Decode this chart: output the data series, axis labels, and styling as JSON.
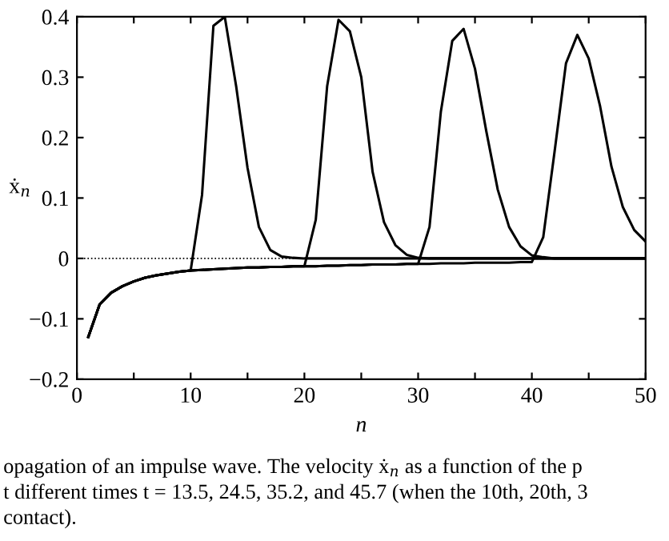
{
  "chart_data": {
    "type": "line",
    "xlabel": "n",
    "ylabel": "ẋ$_{n}$",
    "x": [
      1,
      2,
      3,
      4,
      5,
      6,
      7,
      8,
      9,
      10,
      11,
      12,
      13,
      14,
      15,
      16,
      17,
      18,
      19,
      20,
      21,
      22,
      23,
      24,
      25,
      26,
      27,
      28,
      29,
      30,
      31,
      32,
      33,
      34,
      35,
      36,
      37,
      38,
      39,
      40,
      41,
      42,
      43,
      44,
      45,
      46,
      47,
      48,
      49,
      50
    ],
    "series": [
      {
        "color": "#000000",
        "values": [
          -0.13,
          -0.076,
          -0.057,
          -0.046,
          -0.038,
          -0.032,
          -0.028,
          -0.025,
          -0.022,
          -0.02,
          0.105,
          0.385,
          0.4,
          0.285,
          0.15,
          0.052,
          0.014,
          0.003,
          0.001,
          0,
          0,
          0,
          0,
          0,
          0,
          0,
          0,
          0,
          0,
          0,
          0,
          0,
          0,
          0,
          0,
          0,
          0,
          0,
          0,
          0,
          0,
          0,
          0,
          0,
          0,
          0,
          0,
          0,
          0,
          0
        ]
      },
      {
        "color": "#000000",
        "values": [
          -0.13,
          -0.076,
          -0.057,
          -0.046,
          -0.038,
          -0.032,
          -0.028,
          -0.025,
          -0.022,
          -0.02,
          -0.019,
          -0.018,
          -0.017,
          -0.016,
          -0.015,
          -0.015,
          -0.014,
          -0.014,
          -0.013,
          -0.013,
          0.064,
          0.285,
          0.395,
          0.376,
          0.3,
          0.143,
          0.06,
          0.022,
          0.006,
          0.001,
          0,
          0,
          0,
          0,
          0,
          0,
          0,
          0,
          0,
          0,
          0,
          0,
          0,
          0,
          0,
          0,
          0,
          0,
          0,
          0
        ]
      },
      {
        "color": "#000000",
        "values": [
          -0.13,
          -0.076,
          -0.057,
          -0.046,
          -0.038,
          -0.032,
          -0.028,
          -0.025,
          -0.022,
          -0.02,
          -0.019,
          -0.018,
          -0.017,
          -0.016,
          -0.015,
          -0.015,
          -0.014,
          -0.014,
          -0.013,
          -0.013,
          -0.013,
          -0.012,
          -0.012,
          -0.011,
          -0.011,
          -0.01,
          -0.01,
          -0.01,
          -0.009,
          -0.009,
          0.052,
          0.243,
          0.36,
          0.38,
          0.314,
          0.21,
          0.114,
          0.052,
          0.02,
          0.005,
          0.002,
          0,
          0,
          0,
          0,
          0,
          0,
          0,
          0,
          0
        ]
      },
      {
        "color": "#000000",
        "values": [
          -0.13,
          -0.076,
          -0.057,
          -0.046,
          -0.038,
          -0.032,
          -0.028,
          -0.025,
          -0.022,
          -0.02,
          -0.019,
          -0.018,
          -0.017,
          -0.016,
          -0.015,
          -0.015,
          -0.014,
          -0.014,
          -0.013,
          -0.013,
          -0.013,
          -0.012,
          -0.012,
          -0.011,
          -0.011,
          -0.01,
          -0.01,
          -0.01,
          -0.009,
          -0.009,
          -0.009,
          -0.008,
          -0.008,
          -0.008,
          -0.007,
          -0.007,
          -0.007,
          -0.007,
          -0.006,
          -0.006,
          0.035,
          0.177,
          0.323,
          0.37,
          0.331,
          0.252,
          0.152,
          0.085,
          0.047,
          0.028
        ]
      }
    ],
    "xlim": [
      0,
      50
    ],
    "ylim": [
      -0.2,
      0.4
    ],
    "xticks": [
      0,
      {
        "value": 5,
        "label": null
      },
      10,
      {
        "value": 15,
        "label": null
      },
      20,
      {
        "value": 25,
        "label": null
      },
      30,
      {
        "value": 35,
        "label": null
      },
      40,
      {
        "value": 45,
        "label": null
      },
      50
    ],
    "yticks": [
      {
        "value": -0.2,
        "label": "−0.2"
      },
      {
        "value": -0.1,
        "label": "−0.1"
      },
      0,
      0.1,
      0.2,
      0.3,
      0.4
    ],
    "ref_lines": [
      {
        "axis": "y",
        "value": 0,
        "label": null,
        "color": "#000000",
        "line_style": "dotted"
      }
    ],
    "grid": false,
    "legend": false,
    "marker": "none",
    "line_style": "solid",
    "annotations": [
      "opagation of an impulse wave. The velocity ẋ$_{n}$ as a function of the p",
      "t different times t = 13.5, 24.5, 35.2, and 45.7 (when the 10th, 20th, 3",
      "contact)."
    ]
  }
}
